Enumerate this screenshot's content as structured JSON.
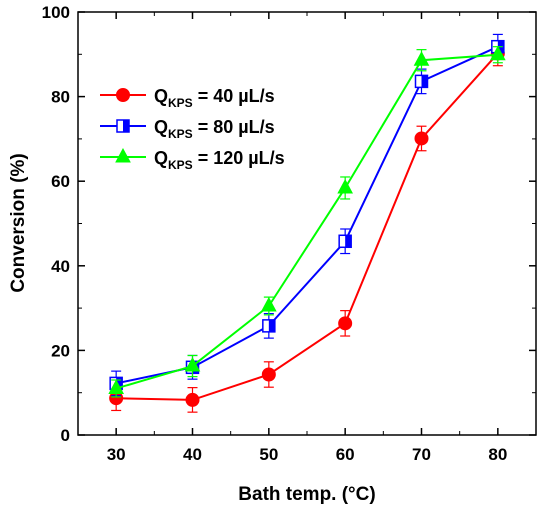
{
  "chart_data": {
    "type": "line",
    "xlabel": "Bath temp. (°C)",
    "ylabel": "Conversion (%)",
    "xlim": [
      25,
      85
    ],
    "ylim": [
      0,
      100
    ],
    "x_ticks": [
      30,
      40,
      50,
      60,
      70,
      80
    ],
    "y_ticks": [
      0,
      20,
      40,
      60,
      80,
      100
    ],
    "legend_position": "upper-left",
    "series": [
      {
        "name_main": "Q",
        "name_sub": "KPS",
        "name_rest": " = 40 µL/s",
        "color": "#ff0000",
        "marker": "filled-circle",
        "x": [
          30,
          40,
          50,
          60,
          70,
          80
        ],
        "y": [
          8.7,
          8.3,
          14.3,
          26.4,
          70.1,
          90.2
        ],
        "err": [
          2.9,
          2.9,
          3.0,
          3.0,
          2.9,
          2.9
        ]
      },
      {
        "name_main": "Q",
        "name_sub": "KPS",
        "name_rest": " = 80 µL/s",
        "color": "#0000ff",
        "marker": "half-filled-square",
        "x": [
          30,
          40,
          50,
          60,
          70,
          80
        ],
        "y": [
          12.2,
          16.0,
          25.8,
          45.8,
          83.6,
          91.8
        ],
        "err": [
          2.9,
          2.8,
          2.9,
          2.9,
          2.9,
          2.9
        ]
      },
      {
        "name_main": "Q",
        "name_sub": "KPS",
        "name_rest": " = 120 µL/s",
        "color": "#00ff00",
        "marker": "filled-triangle",
        "x": [
          30,
          40,
          50,
          60,
          70,
          80
        ],
        "y": [
          11.0,
          16.3,
          30.5,
          58.4,
          88.6,
          89.9
        ],
        "err": [
          2.0,
          2.5,
          2.1,
          2.6,
          2.5,
          1.9
        ]
      }
    ]
  }
}
